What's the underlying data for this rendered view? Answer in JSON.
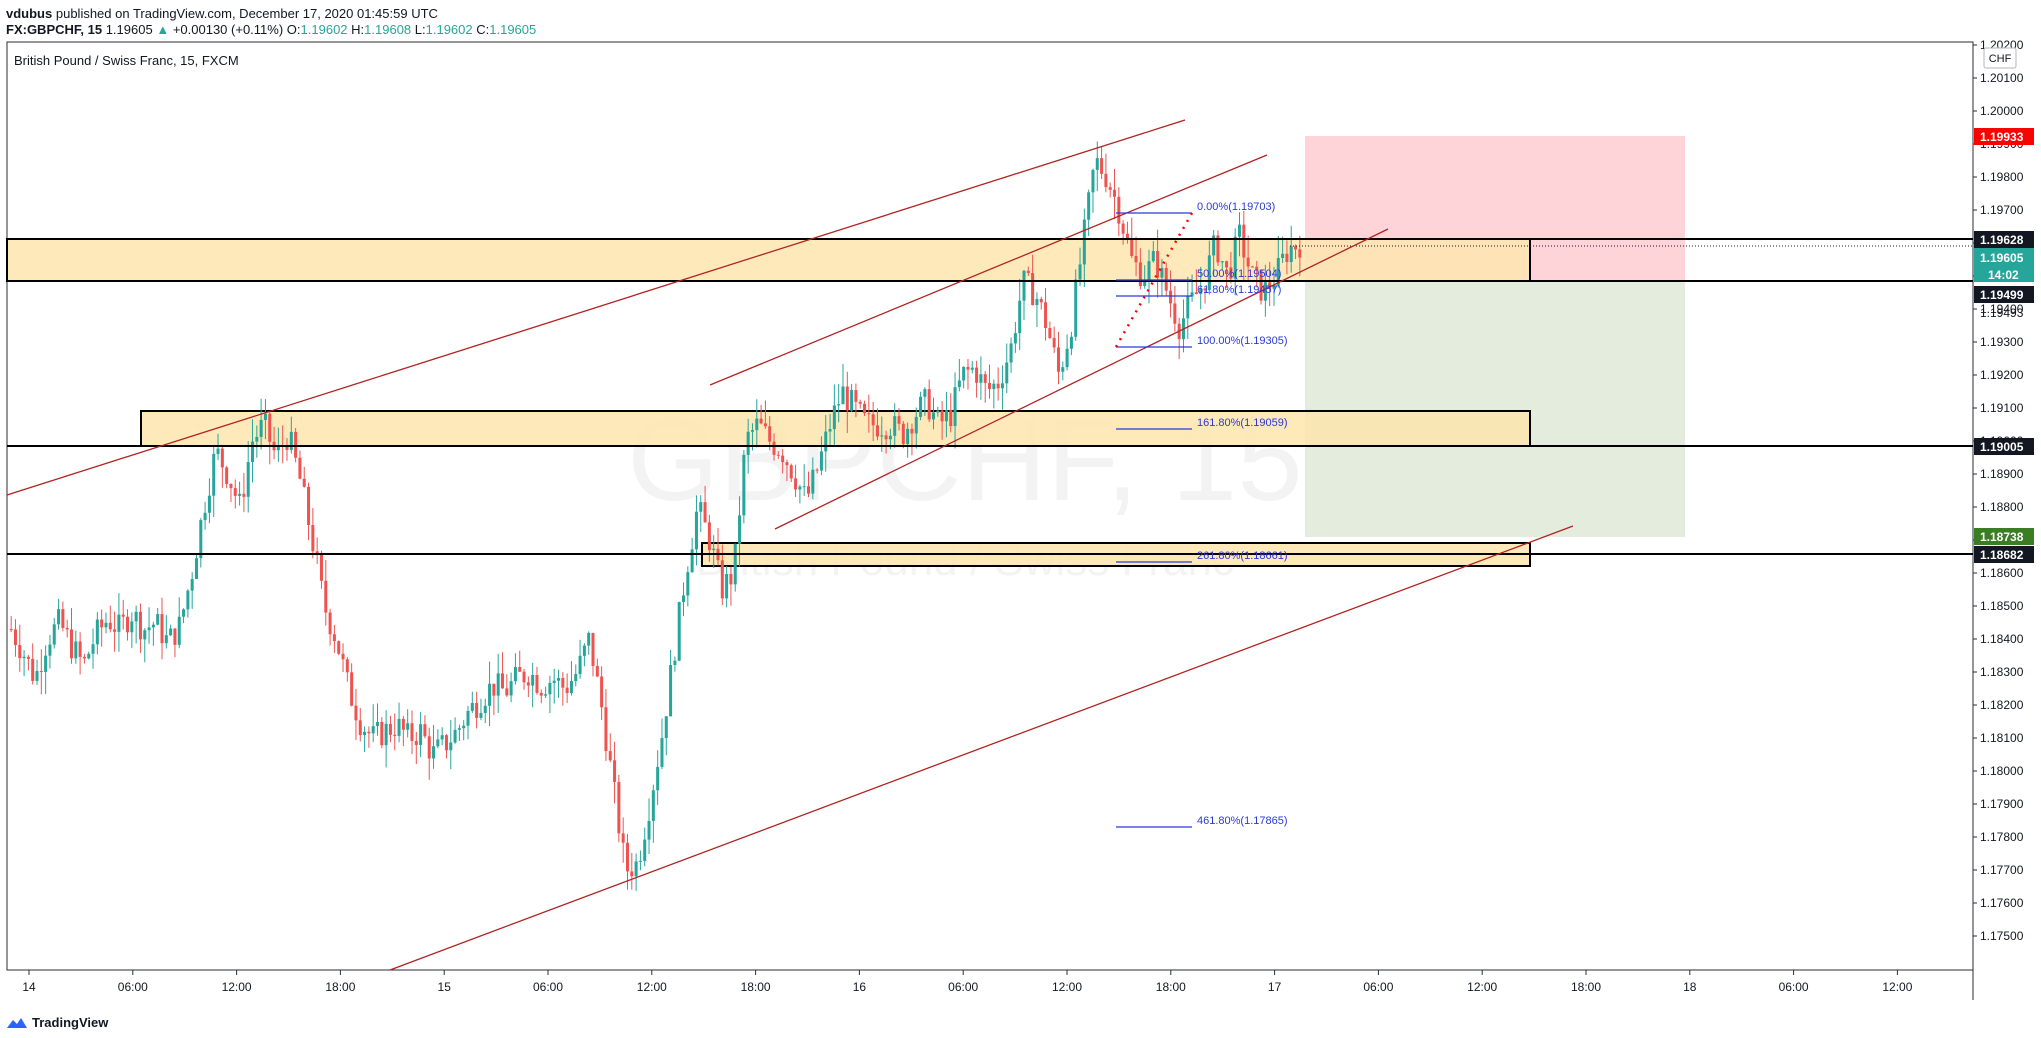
{
  "header": {
    "author": "vdubus",
    "published": "published on TradingView.com, December 17, 2020 01:45:59 UTC",
    "symbol": "FX:GBPCHF, 15",
    "last": "1.19605",
    "change_arrow": "▲",
    "change": "+0.00130 (+0.11%)",
    "o_label": "O:",
    "o_value": "1.19602",
    "h_label": "H:",
    "h_value": "1.19608",
    "l_label": "L:",
    "l_value": "1.19602",
    "c_label": "C:",
    "c_value": "1.19605"
  },
  "legend": "British Pound / Swiss Franc, 15, FXCM",
  "currency_button": "CHF",
  "watermark": {
    "symbol": "GBPCHF, 15",
    "name": "British Pound / Swiss Franc"
  },
  "footer": {
    "brand": "TradingView"
  },
  "colors": {
    "up": "#26a69a",
    "down": "#ef5350",
    "zone": "#fde5ae",
    "channel": "#b22222",
    "fib": "#2a39d8",
    "stop": "#ffcdd2",
    "target": "#dfe9d8",
    "sell_red": "#ff0000",
    "tp_green": "#3b7d23",
    "label_black": "#131722",
    "label_teal": "#26a69a"
  },
  "chart_data": {
    "type": "candlestick",
    "symbol": "GBPCHF",
    "interval": "15",
    "exchange": "FXCM",
    "yrange": [
      1.1745,
      1.2025
    ],
    "y_ticks": [
      "1.17500",
      "1.17600",
      "1.17700",
      "1.17800",
      "1.17900",
      "1.18000",
      "1.18100",
      "1.18200",
      "1.18300",
      "1.18400",
      "1.18500",
      "1.18600",
      "1.18700",
      "1.18800",
      "1.18900",
      "1.19000",
      "1.19100",
      "1.19200",
      "1.19300",
      "1.19400",
      "1.19500",
      "1.19600",
      "1.19700",
      "1.19800",
      "1.19900",
      "1.20000",
      "1.20100",
      "1.20200"
    ],
    "x_ticks": [
      "14",
      "06:00",
      "12:00",
      "18:00",
      "15",
      "06:00",
      "12:00",
      "18:00",
      "16",
      "06:00",
      "12:00",
      "18:00",
      "17",
      "06:00",
      "12:00",
      "18:00",
      "18",
      "06:00",
      "12:00"
    ],
    "price_labels": {
      "stop": "1.19933",
      "zone_top": "1.19628",
      "last": "1.19605",
      "countdown": "14:02",
      "entry": "1.19499",
      "plain": "1.19493",
      "zone_low": "1.19005",
      "target": "1.18738",
      "support": "1.18682"
    },
    "key_levels": [
      1.19628,
      1.19499,
      1.19005,
      1.18682
    ],
    "zones": [
      {
        "from": 1.19499,
        "to": 1.19628
      },
      {
        "from": 1.19005,
        "to": 1.19115
      },
      {
        "from": 1.18658,
        "to": 1.18735
      }
    ],
    "position": {
      "side": "short",
      "entry": 1.19499,
      "stop": 1.19933,
      "target": 1.18738
    },
    "fibonacci": [
      {
        "label": "0.00%(1.19703)",
        "price": 1.19703
      },
      {
        "label": "50.00%(1.19504)",
        "price": 1.19504
      },
      {
        "label": "61.80%(1.19457)",
        "price": 1.19457
      },
      {
        "label": "100.00%(1.19305)",
        "price": 1.19305
      },
      {
        "label": "161.80%(1.19059)",
        "price": 1.19059
      },
      {
        "label": "261.80%(1.18661)",
        "price": 1.18661
      },
      {
        "label": "461.80%(1.17865)",
        "price": 1.17865
      }
    ],
    "channel": "ascending",
    "price_points": [
      1.1843,
      1.1836,
      1.1828,
      1.184,
      1.1845,
      1.1838,
      1.1832,
      1.1841,
      1.1846,
      1.1843,
      1.1848,
      1.1843,
      1.1845,
      1.1839,
      1.1844,
      1.186,
      1.188,
      1.1897,
      1.189,
      1.188,
      1.19,
      1.1905,
      1.1895,
      1.1902,
      1.1888,
      1.187,
      1.185,
      1.184,
      1.1825,
      1.1815,
      1.181,
      1.1812,
      1.1814,
      1.181,
      1.1812,
      1.1805,
      1.1808,
      1.1812,
      1.1818,
      1.1822,
      1.1826,
      1.1824,
      1.1828,
      1.183,
      1.1826,
      1.1828,
      1.1825,
      1.183,
      1.184,
      1.182,
      1.1795,
      1.177,
      1.1772,
      1.179,
      1.181,
      1.1835,
      1.186,
      1.188,
      1.187,
      1.1855,
      1.186,
      1.19,
      1.1905,
      1.19,
      1.1897,
      1.189,
      1.1882,
      1.1892,
      1.1905,
      1.1915,
      1.191,
      1.1905,
      1.1905,
      1.1905,
      1.1902,
      1.1908,
      1.1912,
      1.1905,
      1.1908,
      1.192,
      1.1922,
      1.1915,
      1.1918,
      1.1928,
      1.1948,
      1.1945,
      1.1935,
      1.192,
      1.1935,
      1.196,
      1.1985,
      1.198,
      1.197,
      1.1955,
      1.195,
      1.1955,
      1.1945,
      1.1935,
      1.1942,
      1.1948,
      1.196,
      1.195,
      1.1962,
      1.195,
      1.1945,
      1.195,
      1.1958,
      1.196
    ]
  }
}
